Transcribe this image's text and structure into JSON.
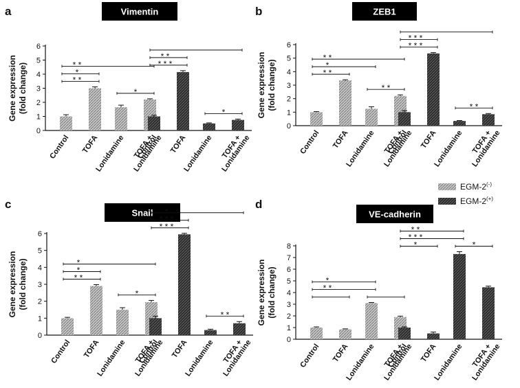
{
  "legend": {
    "items": [
      {
        "name": "EGM-2",
        "sup": "(-)",
        "style": "light"
      },
      {
        "name": "EGM-2",
        "sup": "(+)",
        "style": "dark"
      }
    ]
  },
  "colors": {
    "light": "#b3b3b3",
    "dark": "#333333",
    "axis": "#111111",
    "title_bg": "#000000",
    "title_fg": "#ffffff"
  },
  "chart_data": [
    {
      "panel": "a",
      "title": "Vimentin",
      "type": "bar",
      "ylabel": [
        "Gene expression",
        "(fold change)"
      ],
      "ylim": [
        0,
        6
      ],
      "yticks": [
        0,
        1,
        2,
        3,
        4,
        5,
        6
      ],
      "categories": [
        "Control",
        "TOFA",
        "Lonidamine",
        "TOFA + Lonidamine"
      ],
      "series": [
        {
          "name": "EGM-2(-)",
          "values": [
            1.0,
            3.0,
            1.65,
            2.2
          ],
          "errors": [
            0.12,
            0.1,
            0.15,
            0.05
          ]
        },
        {
          "name": "EGM-2(+)",
          "values": [
            1.0,
            4.15,
            0.5,
            0.75
          ],
          "errors": [
            0.08,
            0.1,
            0.04,
            0.06
          ]
        }
      ],
      "annotations": [
        {
          "series": 0,
          "from": 0,
          "to": 1,
          "text": "* *"
        },
        {
          "series": 0,
          "from": 0,
          "to": 1,
          "text": "*"
        },
        {
          "series": 0,
          "from": 0,
          "to": 3,
          "text": "* *"
        },
        {
          "series": 0,
          "from": 2,
          "to": 3,
          "text": "*"
        },
        {
          "series": 1,
          "from": 0,
          "to": 1,
          "text": "* * *"
        },
        {
          "series": 1,
          "from": 0,
          "to": 1,
          "text": "* *"
        },
        {
          "series": 1,
          "from": 0,
          "to": 3,
          "text": ""
        },
        {
          "series": 1,
          "from": 2,
          "to": 3,
          "text": "*"
        }
      ]
    },
    {
      "panel": "b",
      "title": "ZEB1",
      "type": "bar",
      "ylabel": [
        "Gene expression",
        "(fold change)"
      ],
      "ylim": [
        0,
        6
      ],
      "yticks": [
        0,
        1,
        2,
        3,
        4,
        5,
        6
      ],
      "categories": [
        "Control",
        "TOFA",
        "Lonidamine",
        "TOFA + Lonidamine"
      ],
      "series": [
        {
          "name": "EGM-2(-)",
          "values": [
            1.0,
            3.35,
            1.25,
            2.2
          ],
          "errors": [
            0.04,
            0.05,
            0.15,
            0.08
          ]
        },
        {
          "name": "EGM-2(+)",
          "values": [
            1.0,
            5.35,
            0.35,
            0.85
          ],
          "errors": [
            0.12,
            0.06,
            0.03,
            0.05
          ]
        }
      ],
      "annotations": [
        {
          "series": 0,
          "from": 0,
          "to": 1,
          "text": "* *"
        },
        {
          "series": 0,
          "from": 0,
          "to": 2,
          "text": "*"
        },
        {
          "series": 0,
          "from": 0,
          "to": 3,
          "text": "* *"
        },
        {
          "series": 0,
          "from": 2,
          "to": 3,
          "text": "* *"
        },
        {
          "series": 1,
          "from": 0,
          "to": 1,
          "text": "* * *"
        },
        {
          "series": 1,
          "from": 0,
          "to": 1,
          "text": "* * *"
        },
        {
          "series": 1,
          "from": 0,
          "to": 3,
          "text": ""
        },
        {
          "series": 1,
          "from": 2,
          "to": 3,
          "text": "* *"
        }
      ]
    },
    {
      "panel": "c",
      "title": "Snail",
      "type": "bar",
      "ylabel": [
        "Gene expression",
        "(fold change)"
      ],
      "ylim": [
        0,
        6
      ],
      "yticks": [
        0,
        1,
        2,
        3,
        4,
        5,
        6
      ],
      "categories": [
        "Control",
        "TOFA",
        "Lonidamine",
        "TOFA + Lonidamine"
      ],
      "series": [
        {
          "name": "EGM-2(-)",
          "values": [
            1.0,
            2.9,
            1.5,
            1.95
          ],
          "errors": [
            0.05,
            0.08,
            0.12,
            0.1
          ]
        },
        {
          "name": "EGM-2(+)",
          "values": [
            1.0,
            5.95,
            0.3,
            0.7
          ],
          "errors": [
            0.12,
            0.06,
            0.05,
            0.1
          ]
        }
      ],
      "annotations": [
        {
          "series": 0,
          "from": 0,
          "to": 1,
          "text": "* *"
        },
        {
          "series": 0,
          "from": 0,
          "to": 1,
          "text": "*"
        },
        {
          "series": 0,
          "from": 0,
          "to": 3,
          "text": "*"
        },
        {
          "series": 0,
          "from": 2,
          "to": 3,
          "text": "*"
        },
        {
          "series": 1,
          "from": 0,
          "to": 1,
          "text": "* * *"
        },
        {
          "series": 1,
          "from": 0,
          "to": 1,
          "text": "* * *"
        },
        {
          "series": 1,
          "from": 0,
          "to": 3,
          "text": "*"
        },
        {
          "series": 1,
          "from": 2,
          "to": 3,
          "text": "* *"
        }
      ]
    },
    {
      "panel": "d",
      "title": "VE-cadherin",
      "type": "bar",
      "ylabel": [
        "Gene expression",
        "(fold change)"
      ],
      "ylim": [
        0,
        8
      ],
      "yticks": [
        0,
        1,
        2,
        3,
        4,
        5,
        6,
        7,
        8
      ],
      "categories": [
        "Control",
        "TOFA",
        "Lonidamine",
        "TOFA + Lonidamine"
      ],
      "series": [
        {
          "name": "EGM-2(-)",
          "values": [
            1.0,
            0.85,
            3.1,
            1.9
          ],
          "errors": [
            0.06,
            0.04,
            0.05,
            0.08
          ]
        },
        {
          "name": "EGM-2(+)",
          "values": [
            1.0,
            0.5,
            7.3,
            4.45
          ],
          "errors": [
            0.06,
            0.12,
            0.2,
            0.1
          ]
        }
      ],
      "annotations": [
        {
          "series": 0,
          "from": 0,
          "to": 1,
          "text": ""
        },
        {
          "series": 0,
          "from": 0,
          "to": 2,
          "text": "* *"
        },
        {
          "series": 0,
          "from": 0,
          "to": 2,
          "text": "*"
        },
        {
          "series": 0,
          "from": 2,
          "to": 3,
          "text": ""
        },
        {
          "series": 1,
          "from": 0,
          "to": 1,
          "text": "*"
        },
        {
          "series": 1,
          "from": 0,
          "to": 2,
          "text": "* * *"
        },
        {
          "series": 1,
          "from": 0,
          "to": 2,
          "text": "* *"
        },
        {
          "series": 1,
          "from": 2,
          "to": 3,
          "text": "*"
        }
      ]
    }
  ]
}
